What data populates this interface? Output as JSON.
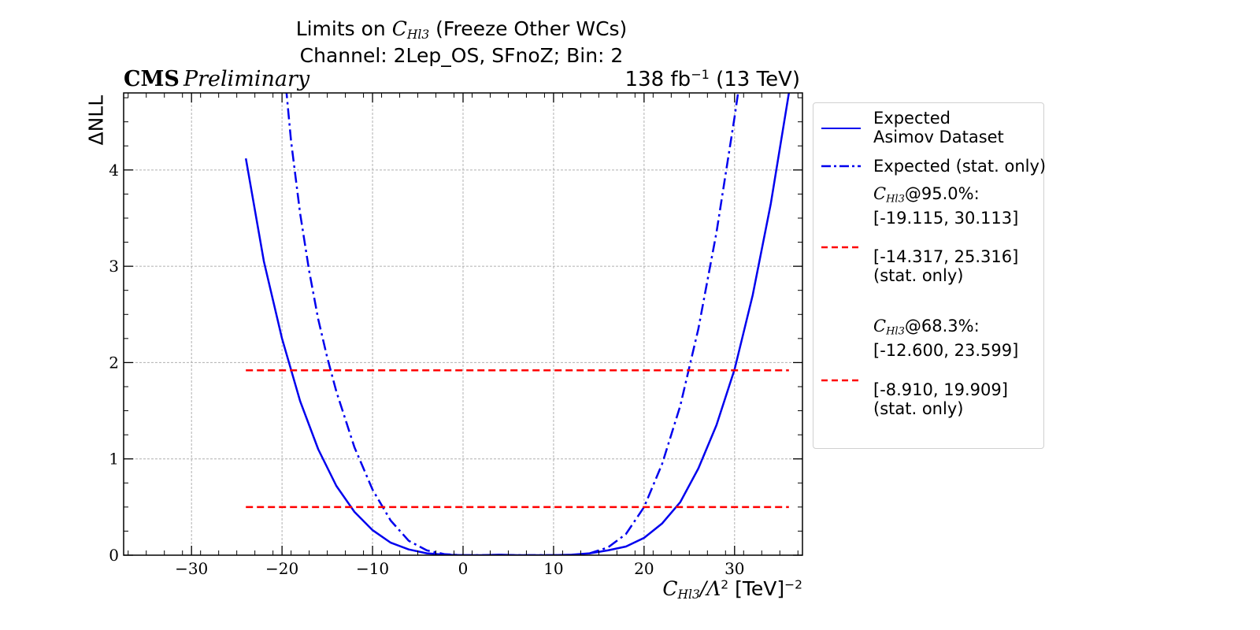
{
  "header": {
    "title_prefix": "Limits on ",
    "title_wc": "C",
    "title_wc_sub": "Hl3",
    "title_suffix": " (Freeze Other WCs)",
    "subtitle": "Channel: 2Lep_OS, SFnoZ; Bin: 2",
    "cms": "CMS",
    "preliminary": "Preliminary",
    "lumi_value": "138 fb",
    "lumi_exp": "−1",
    "lumi_energy": " (13 TeV)"
  },
  "axes": {
    "ylabel": "ΔNLL",
    "xlabel_c": "C",
    "xlabel_sub": "Hl3",
    "xlabel_mid": "/Λ",
    "xlabel_sq": "2",
    "xlabel_units": " [TeV]",
    "xlabel_exp": "−2"
  },
  "legend": {
    "entries": [
      {
        "label_line1": "Expected",
        "label_line2": "Asimov Dataset",
        "color": "#0000ee",
        "style": "solid"
      },
      {
        "label_line1": "Expected (stat. only)",
        "color": "#0000ee",
        "style": "dashdot"
      }
    ],
    "ci95": {
      "wc": "C",
      "wc_sub": "Hl3",
      "level": "@95.0%:",
      "interval": "[-19.115, 30.113]",
      "stat_interval": "[-14.317, 25.316]",
      "stat_label": "(stat. only)",
      "color": "#ff0000"
    },
    "ci68": {
      "wc": "C",
      "wc_sub": "Hl3",
      "level": "@68.3%:",
      "interval": "[-12.600, 23.599]",
      "stat_interval": "[-8.910, 19.909]",
      "stat_label": "(stat. only)",
      "color": "#ff0000"
    }
  },
  "chart_data": {
    "type": "line",
    "xlim": [
      -37.5,
      37.5
    ],
    "ylim": [
      0,
      4.8
    ],
    "x_ticks": [
      -30,
      -20,
      -10,
      0,
      10,
      20,
      30
    ],
    "y_ticks": [
      0,
      1,
      2,
      3,
      4
    ],
    "grid": true,
    "legend_position": "outside-right",
    "series": [
      {
        "name": "Expected Asimov Dataset",
        "style": "solid",
        "color": "#0000ee",
        "x": [
          -24,
          -22,
          -20,
          -18,
          -16,
          -14,
          -12,
          -10,
          -8,
          -6,
          -4,
          -2,
          0,
          2,
          4,
          6,
          8,
          10,
          12,
          14,
          16,
          18,
          20,
          22,
          24,
          26,
          28,
          30,
          32,
          34,
          36
        ],
        "y": [
          4.12,
          3.05,
          2.25,
          1.6,
          1.1,
          0.72,
          0.45,
          0.26,
          0.13,
          0.06,
          0.02,
          0.005,
          0.0,
          0.0,
          0.005,
          0.0,
          0.0,
          0.0,
          0.005,
          0.02,
          0.05,
          0.09,
          0.18,
          0.33,
          0.55,
          0.9,
          1.35,
          1.93,
          2.7,
          3.65,
          4.8
        ]
      },
      {
        "name": "Expected (stat. only)",
        "style": "dashdot",
        "color": "#0000ee",
        "x": [
          -20,
          -19,
          -18,
          -17,
          -16,
          -15,
          -14,
          -12,
          -10,
          -8,
          -6,
          -4,
          -2,
          0,
          2,
          4,
          6,
          8,
          10,
          12,
          14,
          16,
          18,
          20,
          22,
          24,
          26,
          28,
          29,
          30,
          31,
          32
        ],
        "y": [
          5.3,
          4.3,
          3.55,
          2.95,
          2.45,
          2.05,
          1.7,
          1.12,
          0.68,
          0.36,
          0.15,
          0.05,
          0.01,
          0.0,
          0.0,
          0.0,
          0.0,
          0.0,
          0.0,
          0.0,
          0.02,
          0.08,
          0.22,
          0.5,
          0.95,
          1.55,
          2.35,
          3.35,
          3.95,
          4.55,
          5.2,
          5.9
        ]
      },
      {
        "name": "95.0% threshold",
        "style": "dashed",
        "color": "#ff0000",
        "x": [
          -24,
          36
        ],
        "y": [
          1.92,
          1.92
        ]
      },
      {
        "name": "68.3% threshold",
        "style": "dashed",
        "color": "#ff0000",
        "x": [
          -24,
          36
        ],
        "y": [
          0.5,
          0.5
        ]
      }
    ]
  }
}
